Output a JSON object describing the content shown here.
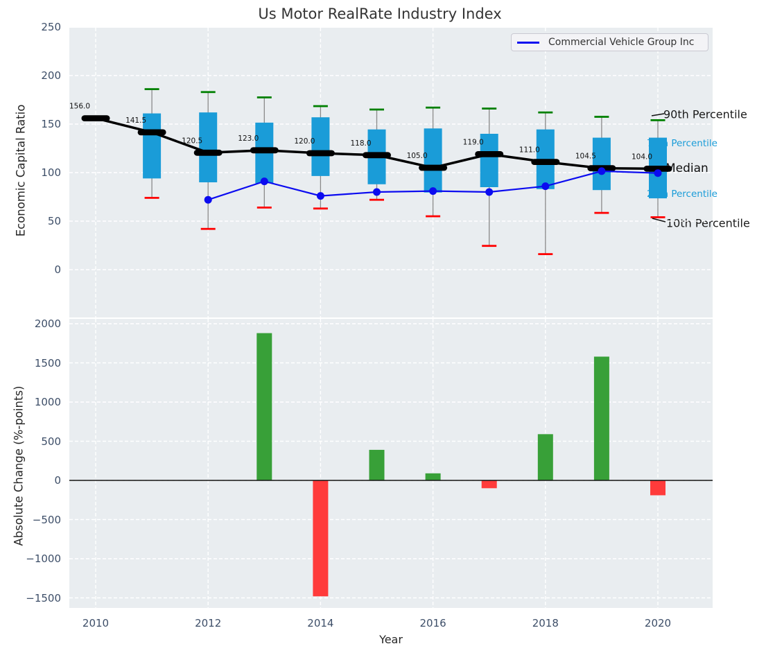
{
  "title": "Us Motor RealRate Industry Index",
  "legend": {
    "label": "Commercial Vehicle Group Inc"
  },
  "colors": {
    "plot_bg": "#e9edf0",
    "grid": "#ffffff",
    "box": "#1a9cd8",
    "whisker": "#8a8a8a",
    "cap_top": "#008000",
    "cap_bottom": "#ff0000",
    "median": "#000000",
    "company_line": "#0b0bf0",
    "bar_positive": "#38a038",
    "bar_negative": "#ff3b3b",
    "zero_line": "#111111",
    "tick_text": "#3d4e68",
    "median_label": "#111111"
  },
  "annotations": {
    "p90": "90th Percentile",
    "p75": "75th Percentile",
    "median": "Median",
    "p25": "25th Percentile",
    "p10": "10th Percentile"
  },
  "chart_data": [
    {
      "type": "boxplot+line",
      "title": "Us Motor RealRate Industry Index",
      "ylabel": "Economic Capital Ratio",
      "ylim": [
        -49,
        250
      ],
      "grid": true,
      "yticks": [
        {
          "v": 250,
          "label": "250"
        },
        {
          "v": 200,
          "label": "200"
        },
        {
          "v": 150,
          "label": "150"
        },
        {
          "v": 100,
          "label": "100"
        },
        {
          "v": 50,
          "label": "50"
        },
        {
          "v": 0,
          "label": "0"
        }
      ],
      "xticks": [
        {
          "v": 2010,
          "label": "2010"
        },
        {
          "v": 2012,
          "label": "2012"
        },
        {
          "v": 2014,
          "label": "2014"
        },
        {
          "v": 2016,
          "label": "2016"
        },
        {
          "v": 2018,
          "label": "2018"
        },
        {
          "v": 2020,
          "label": "2020"
        }
      ],
      "years": [
        2010,
        2011,
        2012,
        2013,
        2014,
        2015,
        2016,
        2017,
        2018,
        2019,
        2020
      ],
      "median": [
        156,
        141.5,
        120.5,
        123,
        120,
        118,
        105,
        119,
        111,
        104.5,
        104
      ],
      "median_labels": [
        "156.0",
        "141.5",
        "120.5",
        "123.0",
        "120.0",
        "118.0",
        "105.0",
        "119.0",
        "111.0",
        "104.5",
        "104.0"
      ],
      "p75": [
        null,
        161,
        162,
        151.5,
        157,
        144.5,
        145.5,
        140,
        144.5,
        136,
        136
      ],
      "p25": [
        null,
        94,
        90,
        89,
        96.5,
        88,
        79.5,
        85,
        83,
        82,
        73.5
      ],
      "p90": [
        null,
        186,
        183,
        177.5,
        168.5,
        165,
        167,
        166,
        162,
        157.5,
        154
      ],
      "p10": [
        null,
        74,
        42,
        64,
        63,
        72,
        55,
        24.5,
        16,
        58.5,
        54
      ],
      "company": {
        "name": "Commercial Vehicle Group Inc",
        "years": [
          2012,
          2013,
          2014,
          2015,
          2016,
          2017,
          2018,
          2019,
          2020
        ],
        "values": [
          72,
          91,
          76,
          80,
          81,
          80,
          86,
          101.5,
          99.5
        ]
      }
    },
    {
      "type": "bar",
      "ylabel": "Absolute Change (%-points)",
      "xlabel": "Year",
      "ylim": [
        -1700,
        2060
      ],
      "grid": true,
      "yticks": [
        {
          "v": 2000,
          "label": "2000"
        },
        {
          "v": 1500,
          "label": "1500"
        },
        {
          "v": 1000,
          "label": "1000"
        },
        {
          "v": 500,
          "label": "500"
        },
        {
          "v": 0,
          "label": "0"
        },
        {
          "v": -500,
          "label": "−500"
        },
        {
          "v": -1000,
          "label": "−1000"
        },
        {
          "v": -1500,
          "label": "−1500"
        }
      ],
      "categories": [
        2013,
        2014,
        2015,
        2016,
        2017,
        2018,
        2019,
        2020
      ],
      "values": [
        1880,
        -1480,
        390,
        90,
        -100,
        590,
        1580,
        -190
      ]
    }
  ]
}
